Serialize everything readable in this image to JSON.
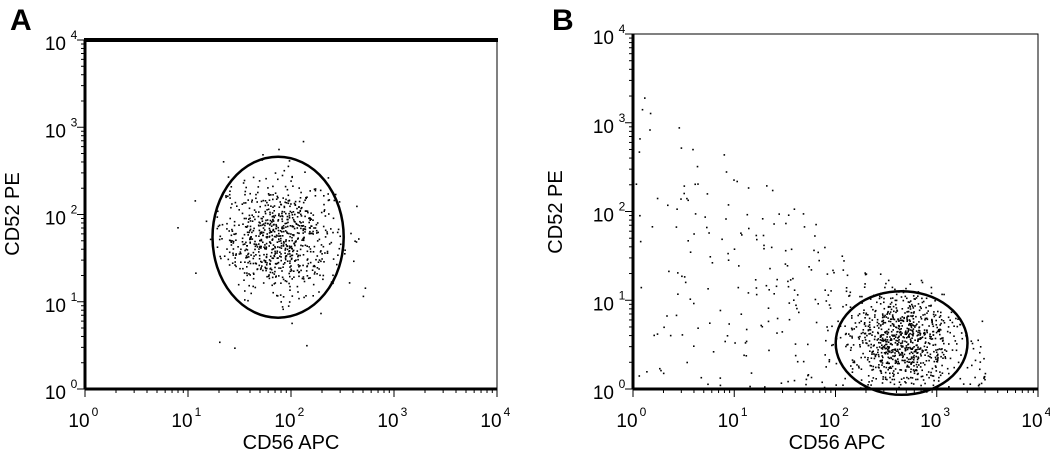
{
  "chart_data": [
    {
      "type": "scatter",
      "panel_label": "A",
      "xlabel": "CD56 APC",
      "ylabel": "CD52 PE",
      "x_scale": "log",
      "y_scale": "log",
      "xlim": [
        1,
        10000
      ],
      "ylim": [
        1,
        10000
      ],
      "tick_labels": [
        {
          "base": "10",
          "exp": "0"
        },
        {
          "base": "10",
          "exp": "1"
        },
        {
          "base": "10",
          "exp": "2"
        },
        {
          "base": "10",
          "exp": "3"
        },
        {
          "base": "10",
          "exp": "4"
        }
      ],
      "grid": false,
      "gate": {
        "shape": "ellipse",
        "center": [
          75,
          55
        ],
        "x_range": [
          17,
          320
        ],
        "y_range": [
          5,
          350
        ]
      },
      "population": {
        "center": [
          75,
          55
        ],
        "spread_decades": [
          0.28,
          0.32
        ],
        "n_points": 800
      },
      "outliers": [
        [
          130,
          700
        ],
        [
          95,
          420
        ],
        [
          20,
          3.5
        ],
        [
          28,
          3
        ],
        [
          140,
          3.2
        ]
      ]
    },
    {
      "type": "scatter",
      "panel_label": "B",
      "xlabel": "CD56 APC",
      "ylabel": "CD52 PE",
      "x_scale": "log",
      "y_scale": "log",
      "xlim": [
        1,
        10000
      ],
      "ylim": [
        1,
        10000
      ],
      "tick_labels": [
        {
          "base": "10",
          "exp": "0"
        },
        {
          "base": "10",
          "exp": "1"
        },
        {
          "base": "10",
          "exp": "2"
        },
        {
          "base": "10",
          "exp": "3"
        },
        {
          "base": "10",
          "exp": "4"
        }
      ],
      "grid": false,
      "gate": {
        "shape": "ellipse",
        "center": [
          450,
          3.3
        ],
        "x_range": [
          100,
          2000
        ],
        "y_range": [
          0.95,
          14
        ]
      },
      "population": {
        "center": [
          420,
          3.5
        ],
        "spread_decades": [
          0.25,
          0.28
        ],
        "n_points": 800
      },
      "background": {
        "x_range": [
          1,
          3000
        ],
        "y_range": [
          1,
          2500
        ],
        "n_points": 320
      }
    }
  ]
}
